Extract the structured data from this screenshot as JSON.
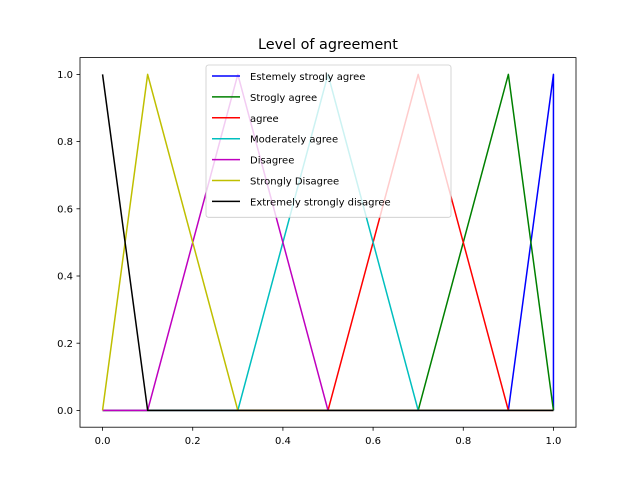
{
  "chart_data": {
    "type": "line",
    "title": "Level of agreement",
    "xlabel": "",
    "ylabel": "",
    "xlim": [
      -0.05,
      1.05
    ],
    "ylim": [
      -0.05,
      1.05
    ],
    "x_ticks": [
      0.0,
      0.2,
      0.4,
      0.6,
      0.8,
      1.0
    ],
    "x_tick_labels": [
      "0.0",
      "0.2",
      "0.4",
      "0.6",
      "0.8",
      "1.0"
    ],
    "y_ticks": [
      0.0,
      0.2,
      0.4,
      0.6,
      0.8,
      1.0
    ],
    "y_tick_labels": [
      "0.0",
      "0.2",
      "0.4",
      "0.6",
      "0.8",
      "1.0"
    ],
    "grid": false,
    "legend_position": "top-center",
    "series": [
      {
        "name": "Estemely strogly agree",
        "color": "#0000ff",
        "x": [
          0.0,
          0.9,
          1.0,
          1.0
        ],
        "y": [
          0.0,
          0.0,
          1.0,
          0.0
        ]
      },
      {
        "name": "Strogly agree",
        "color": "#008000",
        "x": [
          0.0,
          0.7,
          0.9,
          1.0
        ],
        "y": [
          0.0,
          0.0,
          1.0,
          0.0
        ]
      },
      {
        "name": "agree",
        "color": "#ff0000",
        "x": [
          0.0,
          0.5,
          0.7,
          0.9,
          1.0
        ],
        "y": [
          0.0,
          0.0,
          1.0,
          0.0,
          0.0
        ]
      },
      {
        "name": "Moderately agree",
        "color": "#00bfbf",
        "x": [
          0.0,
          0.3,
          0.5,
          0.7,
          1.0
        ],
        "y": [
          0.0,
          0.0,
          1.0,
          0.0,
          0.0
        ]
      },
      {
        "name": "Disagree",
        "color": "#bf00bf",
        "x": [
          0.0,
          0.1,
          0.3,
          0.5,
          1.0
        ],
        "y": [
          0.0,
          0.0,
          1.0,
          0.0,
          0.0
        ]
      },
      {
        "name": "Strongly Disagree",
        "color": "#bfbf00",
        "x": [
          0.0,
          0.1,
          0.3,
          1.0
        ],
        "y": [
          0.0,
          1.0,
          0.0,
          0.0
        ]
      },
      {
        "name": "Extremely strongly disagree",
        "color": "#000000",
        "x": [
          0.0,
          0.1,
          1.0
        ],
        "y": [
          1.0,
          0.0,
          0.0
        ]
      }
    ]
  }
}
